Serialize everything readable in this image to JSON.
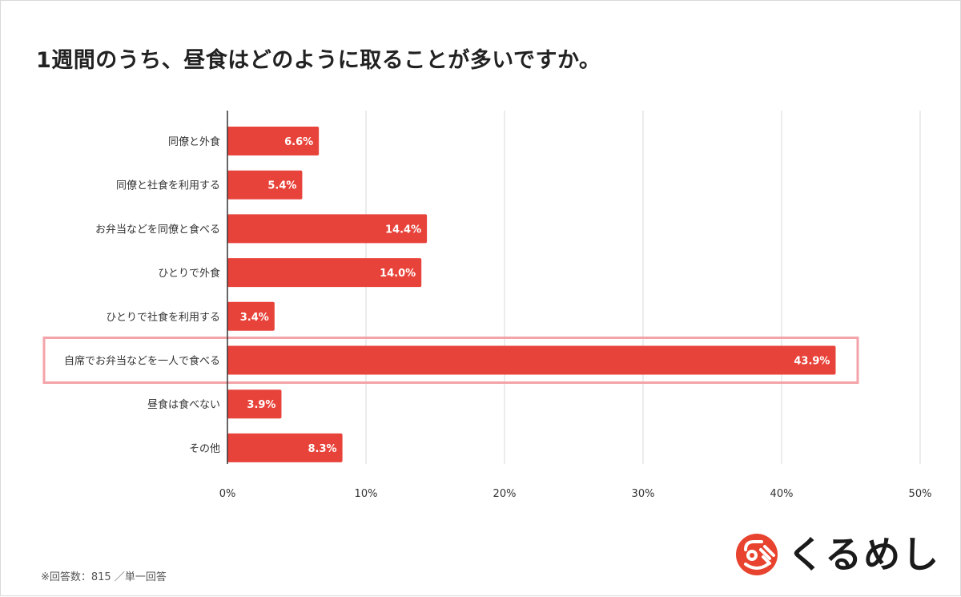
{
  "title": "1週間のうち、昼食はどのように取ることが多いですか。",
  "footnote": "※回答数：815 ／単一回答",
  "logo": {
    "text": "くるめし",
    "icon": "fork-and-face-logo-icon",
    "color": "#e8432f"
  },
  "colors": {
    "bar": "#e8433a",
    "highlight_border": "#f4a3a8",
    "grid": "#d9d9d9",
    "axis": "#333333",
    "bar_label": "#ffffff"
  },
  "chart_data": {
    "type": "bar",
    "orientation": "horizontal",
    "categories": [
      "同僚と外食",
      "同僚と社食を利用する",
      "お弁当などを同僚と食べる",
      "ひとりで外食",
      "ひとりで社食を利用する",
      "自席でお弁当などを一人で食べる",
      "昼食は食べない",
      "その他"
    ],
    "values": [
      6.6,
      5.4,
      14.4,
      14.0,
      3.4,
      43.9,
      3.9,
      8.3
    ],
    "data_labels": [
      "6.6%",
      "5.4%",
      "14.4%",
      "14.0%",
      "3.4%",
      "43.9%",
      "3.9%",
      "8.3%"
    ],
    "x_ticks": [
      0,
      10,
      20,
      30,
      40,
      50
    ],
    "x_tick_labels": [
      "0%",
      "10%",
      "20%",
      "30%",
      "40%",
      "50%"
    ],
    "xlim": [
      0,
      50
    ],
    "grid": true,
    "highlighted_category": "自席でお弁当などを一人で食べる"
  }
}
